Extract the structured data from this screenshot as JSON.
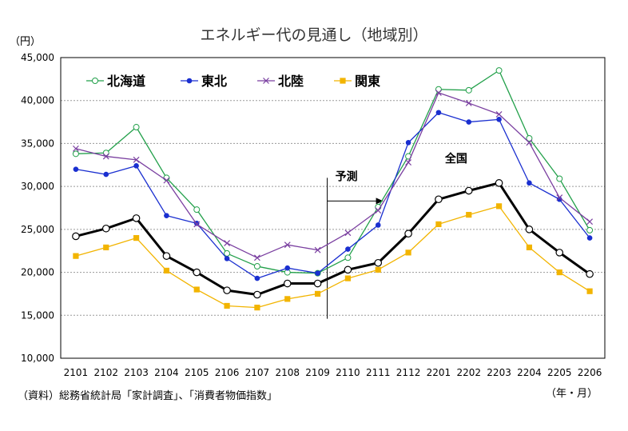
{
  "chart_data": {
    "type": "line",
    "title": "エネルギー代の見通し（地域別）",
    "ylabel": "（円）",
    "xlabel": "（年・月）",
    "source": "（資料）総務省統計局「家計調査」、「消費者物価指数」",
    "ylim": [
      10000,
      45000
    ],
    "yticks": [
      "10,000",
      "15,000",
      "20,000",
      "25,000",
      "30,000",
      "35,000",
      "40,000",
      "45,000"
    ],
    "ytick_values": [
      10000,
      15000,
      20000,
      25000,
      30000,
      35000,
      40000,
      45000
    ],
    "grid": true,
    "legend_position": "top-left",
    "categories": [
      "2101",
      "2102",
      "2103",
      "2104",
      "2105",
      "2106",
      "2107",
      "2108",
      "2109",
      "2110",
      "2111",
      "2112",
      "2201",
      "2202",
      "2203",
      "2204",
      "2205",
      "2206"
    ],
    "forecast_label": "予測",
    "forecast_start": "2109",
    "series": [
      {
        "name": "北海道",
        "color": "#22a04a",
        "marker": "open-circle",
        "values": [
          33800,
          33900,
          36900,
          31000,
          27300,
          22200,
          20700,
          20000,
          19900,
          21700,
          27600,
          33500,
          41300,
          41200,
          43500,
          35600,
          30900,
          24900
        ]
      },
      {
        "name": "東北",
        "color": "#1a2fd0",
        "marker": "filled-circle",
        "values": [
          32000,
          31400,
          32400,
          26600,
          25700,
          21600,
          19300,
          20500,
          19900,
          22700,
          25500,
          35100,
          38600,
          37500,
          37800,
          30400,
          28500,
          24000
        ]
      },
      {
        "name": "北陸",
        "color": "#7a3fa0",
        "marker": "x",
        "values": [
          34400,
          33500,
          33100,
          30700,
          25600,
          23400,
          21700,
          23200,
          22600,
          24600,
          27200,
          32800,
          40900,
          39700,
          38400,
          35100,
          28700,
          25900
        ]
      },
      {
        "name": "関東",
        "color": "#f2b400",
        "marker": "square",
        "values": [
          21900,
          22900,
          24000,
          20200,
          18000,
          16100,
          15900,
          16900,
          17500,
          19300,
          20300,
          22300,
          25600,
          26700,
          27700,
          22900,
          20000,
          17800
        ]
      },
      {
        "name": "全国",
        "color": "#000000",
        "marker": "open-circle-bold",
        "label_on_chart": true,
        "values": [
          24200,
          25100,
          26300,
          21900,
          20000,
          17900,
          17400,
          18700,
          18700,
          20300,
          21100,
          24500,
          28500,
          29500,
          30400,
          25000,
          22300,
          19800
        ]
      }
    ]
  }
}
